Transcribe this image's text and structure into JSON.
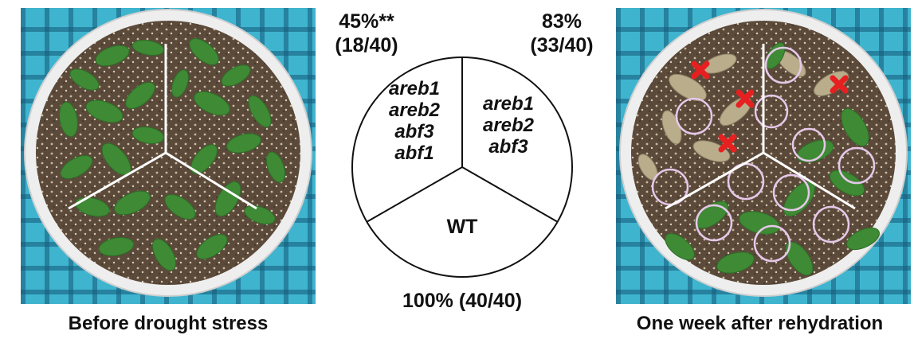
{
  "left_panel": {
    "caption": "Before drought stress"
  },
  "right_panel": {
    "caption": "One week after rehydration"
  },
  "diagram": {
    "top_left": {
      "percent": "45%**",
      "count": "(18/40)",
      "genes": [
        "areb1",
        "areb2",
        "abf3",
        "abf1"
      ]
    },
    "top_right": {
      "percent": "83%",
      "count": "(33/40)",
      "genes": [
        "areb1",
        "areb2",
        "abf3"
      ]
    },
    "bottom": {
      "label": "WT",
      "result": "100% (40/40)"
    }
  },
  "colors": {
    "pot_rim": "#f2f2f2",
    "tray": "#3fb4cf",
    "leaf": "#3f8a34",
    "dead_leaf": "#b9ad8c",
    "dead_mark": "#e62020",
    "survivor_circle": "#e6c8ea"
  }
}
